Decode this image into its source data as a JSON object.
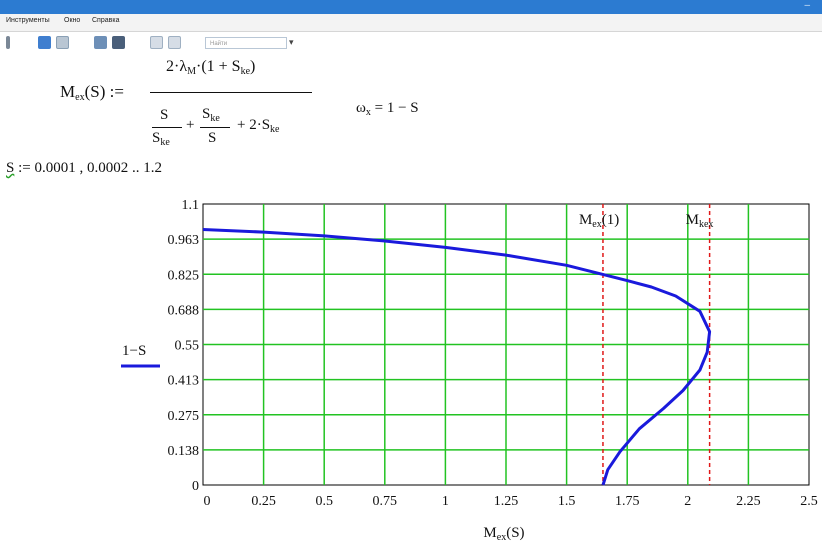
{
  "window": {
    "minimize_label": "–"
  },
  "menu": {
    "items": [
      "Инструменты",
      "Окно",
      "Справка"
    ]
  },
  "toolbar": {
    "search_placeholder": "Найти"
  },
  "equations": {
    "mass_lhs_main": "M",
    "mass_lhs_sub": "ex",
    "mass_lhs_arg": "(S) :=",
    "numerator_main": "2·λ",
    "numerator_sub": "M",
    "numerator_rest": "·(1 + S",
    "numerator_sub2": "ke",
    "numerator_close": ")",
    "den_s": "S",
    "den_ske": "S",
    "den_ske_sub": "ke",
    "den_plus1": "+",
    "den_ske2": "S",
    "den_ske2_sub": "ke",
    "den_s2": "S",
    "den_tail": "+ 2·S",
    "den_tail_sub": "ke",
    "omega_lhs": "ω",
    "omega_sub": "x",
    "omega_rhs": "= 1 − S",
    "range_var": "S",
    "range_def": ":= 0.0001 , 0.0002 .. 1.2"
  },
  "chart_data": {
    "type": "line",
    "xlabel": "M",
    "xlabel_sub": "ex",
    "xlabel_arg": "(S)",
    "ylabel": "1−S",
    "xlim": [
      0,
      2.5
    ],
    "ylim": [
      0,
      1.1
    ],
    "x_ticks": [
      "0",
      "0.25",
      "0.5",
      "0.75",
      "1",
      "1.25",
      "1.5",
      "1.75",
      "2",
      "2.25",
      "2.5"
    ],
    "y_ticks": [
      "0",
      "0.138",
      "0.275",
      "0.413",
      "0.55",
      "0.688",
      "0.825",
      "0.963",
      "1.1"
    ],
    "grid": true,
    "series": [
      {
        "name": "1−S",
        "color": "#1a1adc",
        "x": [
          0,
          0.25,
          0.5,
          0.75,
          1.0,
          1.25,
          1.5,
          1.75,
          1.85,
          1.95,
          2.05,
          2.09,
          2.08,
          2.05,
          1.98,
          1.9,
          1.8,
          1.72,
          1.67,
          1.65
        ],
        "y": [
          1.0,
          0.99,
          0.975,
          0.955,
          0.93,
          0.9,
          0.86,
          0.8,
          0.775,
          0.74,
          0.68,
          0.6,
          0.52,
          0.45,
          0.37,
          0.3,
          0.22,
          0.13,
          0.06,
          0.0
        ]
      }
    ],
    "vlines": [
      {
        "x": 1.65,
        "label": "M",
        "label_sub": "ex",
        "label_arg": "(1)",
        "color": "#e01818"
      },
      {
        "x": 2.09,
        "label": "M",
        "label_sub": "kex",
        "label_arg": "",
        "color": "#e01818"
      }
    ]
  }
}
